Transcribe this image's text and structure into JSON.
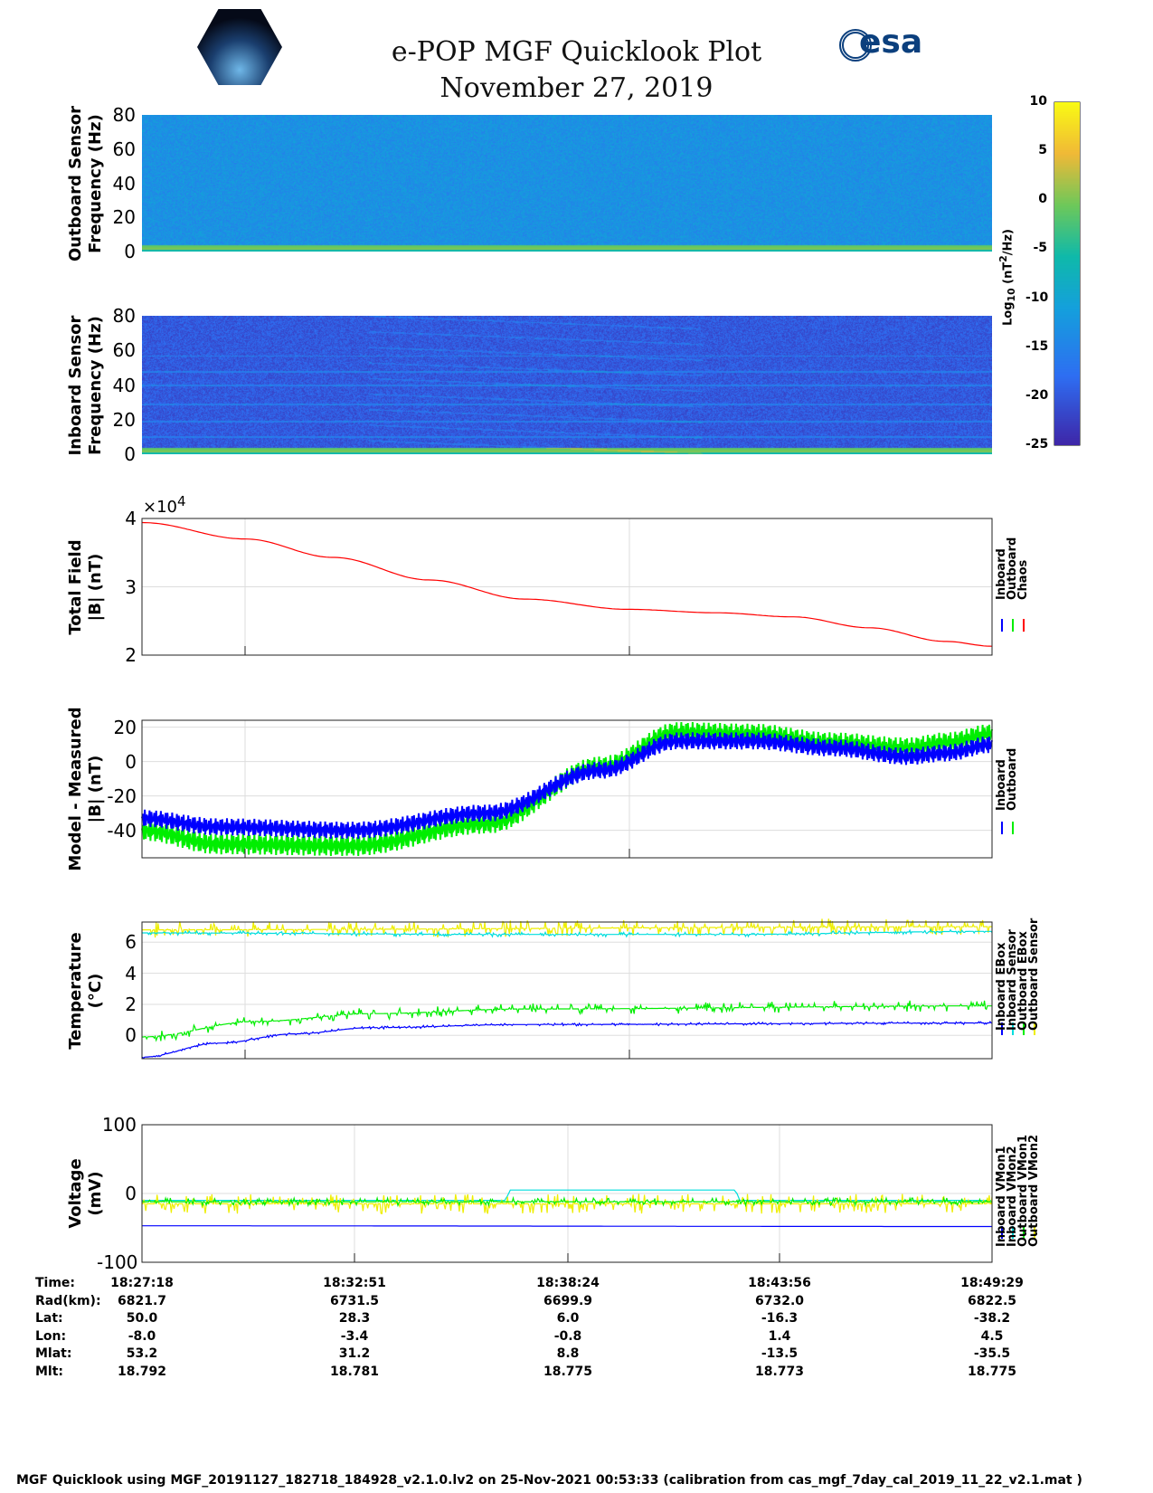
{
  "header": {
    "title": "e-POP MGF Quicklook Plot",
    "date": "November 27, 2019",
    "logo_left": "CASSIOPE",
    "logo_right": "esa"
  },
  "colorbar": {
    "label": "Log10 (nT^2/Hz)",
    "label_main": "Log",
    "label_sub": "10",
    "label_rest": " (nT",
    "label_sup": "2",
    "label_end": "/Hz)",
    "range": [
      -25,
      10
    ],
    "ticks": [
      "10",
      "5",
      "0",
      "-5",
      "-10",
      "-15",
      "-20",
      "-25"
    ]
  },
  "chart_data": [
    {
      "type": "heatmap",
      "name": "outboard-spectrogram",
      "ylabel": [
        "Outboard Sensor",
        "Frequency (Hz)"
      ],
      "ylim": [
        0,
        80
      ],
      "yticks": [
        "80",
        "60",
        "40",
        "20",
        "0"
      ],
      "background_log10": -13
    },
    {
      "type": "heatmap",
      "name": "inboard-spectrogram",
      "ylabel": [
        "Inboard Sensor",
        "Frequency (Hz)"
      ],
      "ylim": [
        0,
        80
      ],
      "yticks": [
        "80",
        "60",
        "40",
        "20",
        "0"
      ],
      "background_log10": -20
    },
    {
      "type": "line",
      "name": "total-field",
      "ylabel": [
        "Total Field",
        "|B| (nT)"
      ],
      "ylim": [
        20000,
        40000
      ],
      "yticks": [
        "4",
        "3",
        "2"
      ],
      "exponent": "×10",
      "exponent_power": "4",
      "xlim_min": [
        0,
        22.2
      ],
      "legend": [
        "Inboard",
        "Outboard",
        "Chaos"
      ],
      "legend_colors": [
        "#0000ff",
        "#00ee00",
        "#ff0000"
      ],
      "series": [
        {
          "name": "Chaos",
          "color": "#ff0000",
          "points": [
            [
              0,
              39400
            ],
            [
              2.7,
              37000
            ],
            [
              5,
              34300
            ],
            [
              7.5,
              31000
            ],
            [
              10,
              28200
            ],
            [
              12.7,
              26700
            ],
            [
              15,
              26200
            ],
            [
              17,
              25600
            ],
            [
              19,
              24000
            ],
            [
              21,
              22000
            ],
            [
              22.2,
              21300
            ]
          ]
        }
      ]
    },
    {
      "type": "line",
      "name": "model-minus-measured",
      "ylabel": [
        "Model - Measured",
        "|B| (nT)"
      ],
      "ylim": [
        -56,
        24
      ],
      "yticks": [
        "20",
        "0",
        "-20",
        "-40"
      ],
      "legend": [
        "Inboard",
        "Outboard"
      ],
      "legend_colors": [
        "#0000ff",
        "#00ee00"
      ],
      "series": [
        {
          "name": "Outboard",
          "color": "#00ee00",
          "amp": 6,
          "points": [
            [
              0,
              -40
            ],
            [
              2,
              -48
            ],
            [
              5.5,
              -49
            ],
            [
              9,
              -36
            ],
            [
              12,
              -3
            ],
            [
              14,
              17
            ],
            [
              16,
              16
            ],
            [
              18,
              11
            ],
            [
              20,
              8
            ],
            [
              21,
              11
            ],
            [
              22.2,
              16
            ]
          ]
        },
        {
          "name": "Inboard",
          "color": "#0000ff",
          "amp": 5,
          "points": [
            [
              0,
              -33
            ],
            [
              2,
              -38
            ],
            [
              5.5,
              -40
            ],
            [
              9,
              -30
            ],
            [
              12,
              -5
            ],
            [
              14,
              12
            ],
            [
              16,
              12
            ],
            [
              18,
              8
            ],
            [
              20,
              3
            ],
            [
              21,
              5
            ],
            [
              22.2,
              10
            ]
          ]
        }
      ]
    },
    {
      "type": "line",
      "name": "temperature",
      "ylabel": [
        "Temperature",
        "(°C)"
      ],
      "ylim": [
        -1.5,
        7.3
      ],
      "yticks": [
        "6",
        "4",
        "2",
        "0"
      ],
      "legend": [
        "Inboard EBox",
        "Inboard Sensor",
        "Outboard EBox",
        "Outboard Sensor"
      ],
      "legend_colors": [
        "#0000ff",
        "#00dddd",
        "#00ee00",
        "#eeee00"
      ],
      "series": [
        {
          "name": "Outboard EBox",
          "color": "#eeee00",
          "amp": 0.3,
          "points": [
            [
              0,
              6.8
            ],
            [
              22.2,
              7.0
            ]
          ]
        },
        {
          "name": "Inboard EBox",
          "color": "#00dddd",
          "amp": 0.08,
          "points": [
            [
              0,
              6.6
            ],
            [
              10,
              6.5
            ],
            [
              15,
              6.5
            ],
            [
              22.2,
              6.7
            ]
          ]
        },
        {
          "name": "Outboard Sensor",
          "color": "#00ee00",
          "amp": 0.2,
          "points": [
            [
              0,
              -0.1
            ],
            [
              3,
              0.9
            ],
            [
              6,
              1.4
            ],
            [
              10,
              1.7
            ],
            [
              22.2,
              1.9
            ]
          ]
        },
        {
          "name": "Inboard Sensor",
          "color": "#0000ff",
          "amp": 0.05,
          "points": [
            [
              0,
              -1.4
            ],
            [
              2,
              -0.5
            ],
            [
              4,
              0.1
            ],
            [
              6,
              0.5
            ],
            [
              10,
              0.7
            ],
            [
              22.2,
              0.8
            ]
          ]
        }
      ]
    },
    {
      "type": "line",
      "name": "voltage",
      "ylabel": [
        "Voltage",
        "(mV)"
      ],
      "ylim": [
        -100,
        100
      ],
      "yticks": [
        "100",
        "0",
        "-100"
      ],
      "legend": [
        "Inboard VMon1",
        "Inboard VMon2",
        "Outboard VMon1",
        "Outboard VMon2"
      ],
      "legend_colors": [
        "#0000ff",
        "#00dddd",
        "#00ee00",
        "#eeee00"
      ],
      "series": [
        {
          "name": "Inboard VMon2",
          "color": "#00dddd",
          "amp": 0,
          "points": [
            [
              0,
              -10
            ],
            [
              9.5,
              -10
            ],
            [
              9.6,
              5
            ],
            [
              15.5,
              5
            ],
            [
              15.6,
              -10
            ],
            [
              22.2,
              -10
            ]
          ]
        },
        {
          "name": "Outboard VMon2",
          "color": "#eeee00",
          "amp": 8,
          "points": [
            [
              0,
              -15
            ],
            [
              22.2,
              -15
            ]
          ]
        },
        {
          "name": "Outboard VMon1",
          "color": "#00ee00",
          "amp": 3,
          "points": [
            [
              0,
              -12
            ],
            [
              22.2,
              -12
            ]
          ]
        },
        {
          "name": "Inboard VMon1",
          "color": "#0000ff",
          "amp": 0,
          "points": [
            [
              0,
              -47
            ],
            [
              22.2,
              -48
            ]
          ]
        }
      ]
    }
  ],
  "ephemeris": {
    "labels": [
      "Time:",
      "Rad(km):",
      "Lat:",
      "Lon:",
      "Mlat:",
      "Mlt:"
    ],
    "columns": [
      [
        "18:27:18",
        "6821.7",
        "50.0",
        "-8.0",
        "53.2",
        "18.792"
      ],
      [
        "18:32:51",
        "6731.5",
        "28.3",
        "-3.4",
        "31.2",
        "18.781"
      ],
      [
        "18:38:24",
        "6699.9",
        "6.0",
        "-0.8",
        "8.8",
        "18.775"
      ],
      [
        "18:43:56",
        "6732.0",
        "-16.3",
        "1.4",
        "-13.5",
        "18.773"
      ],
      [
        "18:49:29",
        "6822.5",
        "-38.2",
        "4.5",
        "-35.5",
        "18.775"
      ]
    ]
  },
  "footer": "MGF Quicklook using MGF_20191127_182718_184928_v2.1.0.lv2 on 25-Nov-2021 00:53:33 (calibration from cas_mgf_7day_cal_2019_11_22_v2.1.mat )"
}
